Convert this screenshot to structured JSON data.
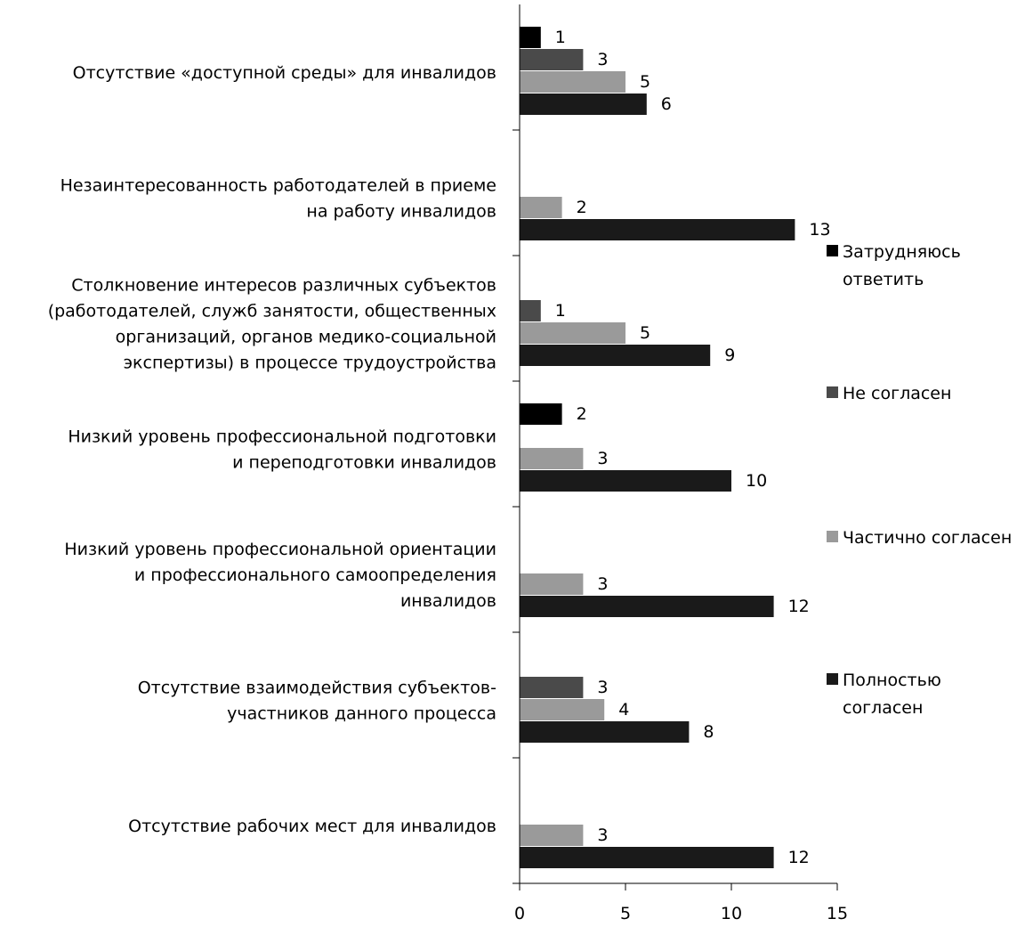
{
  "chart_data": {
    "type": "bar",
    "orientation": "horizontal",
    "categories": [
      [
        "Отсутствие «доступной среды» для инвалидов"
      ],
      [
        "Незаинтересованность работодателей в приеме",
        "на работу инвалидов"
      ],
      [
        "Столкновение интересов различных субъектов",
        "(работодателей, служб занятости, общественных",
        "организаций, органов медико-социальной",
        "экспертизы) в процессе трудоустройства"
      ],
      [
        "Низкий уровень профессиональной подготовки",
        "и переподготовки инвалидов"
      ],
      [
        "Низкий уровень профессиональной ориентации",
        "и профессионального самоопределения",
        "инвалидов"
      ],
      [
        "Отсутствие взаимодействия субъектов-",
        "участников данного процесса"
      ],
      [
        "Отсутствие рабочих мест для инвалидов"
      ]
    ],
    "series": [
      {
        "name": "Затрудняюсь ответить",
        "legend_lines": [
          "Затрудняюсь",
          "ответить"
        ],
        "color": "#000000",
        "values": [
          1,
          0,
          0,
          2,
          0,
          0,
          0
        ]
      },
      {
        "name": "Не согласен",
        "legend_lines": [
          "Не согласен"
        ],
        "color": "#4a4a4a",
        "values": [
          3,
          0,
          1,
          0,
          0,
          3,
          0
        ]
      },
      {
        "name": "Частично согласен",
        "legend_lines": [
          "Частично согласен"
        ],
        "color": "#9a9a9a",
        "values": [
          5,
          2,
          5,
          3,
          3,
          4,
          3
        ]
      },
      {
        "name": "Полностью согласен",
        "legend_lines": [
          "Полностью",
          "согласен"
        ],
        "color": "#1a1a1a",
        "values": [
          6,
          13,
          9,
          10,
          12,
          8,
          12
        ]
      }
    ],
    "xlim": [
      0,
      15
    ],
    "xticks": [
      0,
      5,
      10,
      15
    ],
    "title": "",
    "xlabel": "",
    "ylabel": "",
    "grid": false,
    "legend_position": "right"
  }
}
